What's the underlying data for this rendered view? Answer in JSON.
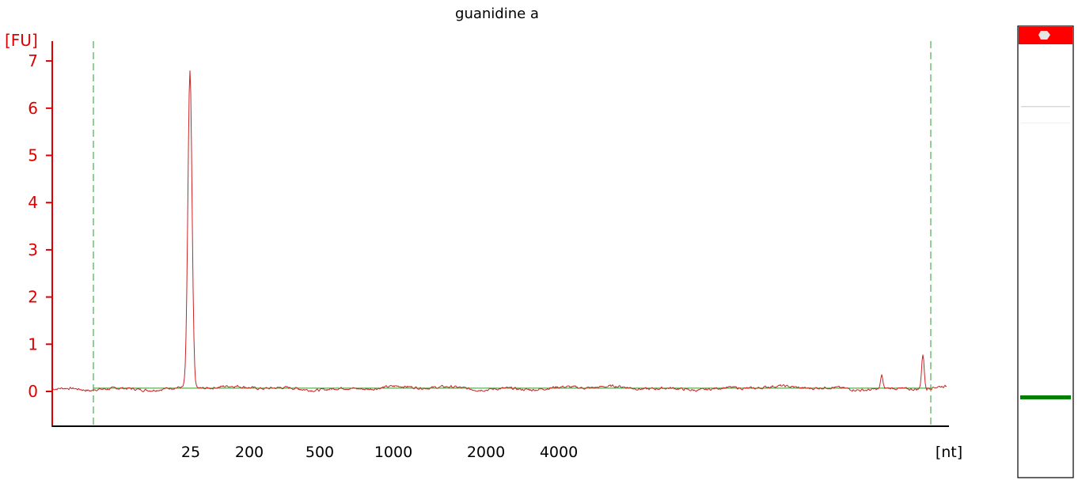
{
  "chart_data": {
    "type": "line",
    "title": "guanidine a",
    "ylabel": "[FU]",
    "xlabel": "[nt]",
    "ylim": [
      -0.7,
      7.4
    ],
    "yticks": [
      {
        "value": 0,
        "label": "0"
      },
      {
        "value": 1,
        "label": "1"
      },
      {
        "value": 2,
        "label": "2"
      },
      {
        "value": 3,
        "label": "3"
      },
      {
        "value": 4,
        "label": "4"
      },
      {
        "value": 5,
        "label": "5"
      },
      {
        "value": 6,
        "label": "6"
      },
      {
        "value": 7,
        "label": "7"
      }
    ],
    "xticks": [
      "25",
      "200",
      "500",
      "1000",
      "2000",
      "4000"
    ],
    "baseline_level": 0.07,
    "series": [
      {
        "peaks": [
          {
            "label": "25",
            "value": 6.7
          },
          {
            "label": "near end, small",
            "value": 0.3
          },
          {
            "label": "near end, marker",
            "value": 0.73
          }
        ]
      }
    ],
    "gel_lane": {
      "marker_band_color": "#ff0000",
      "sample_band_color": "#008000"
    },
    "colors": {
      "axis": "#dd0000",
      "trace": "#cc2222",
      "boundary": "#2e9a2e",
      "baseline": "#2e9a2e"
    }
  }
}
